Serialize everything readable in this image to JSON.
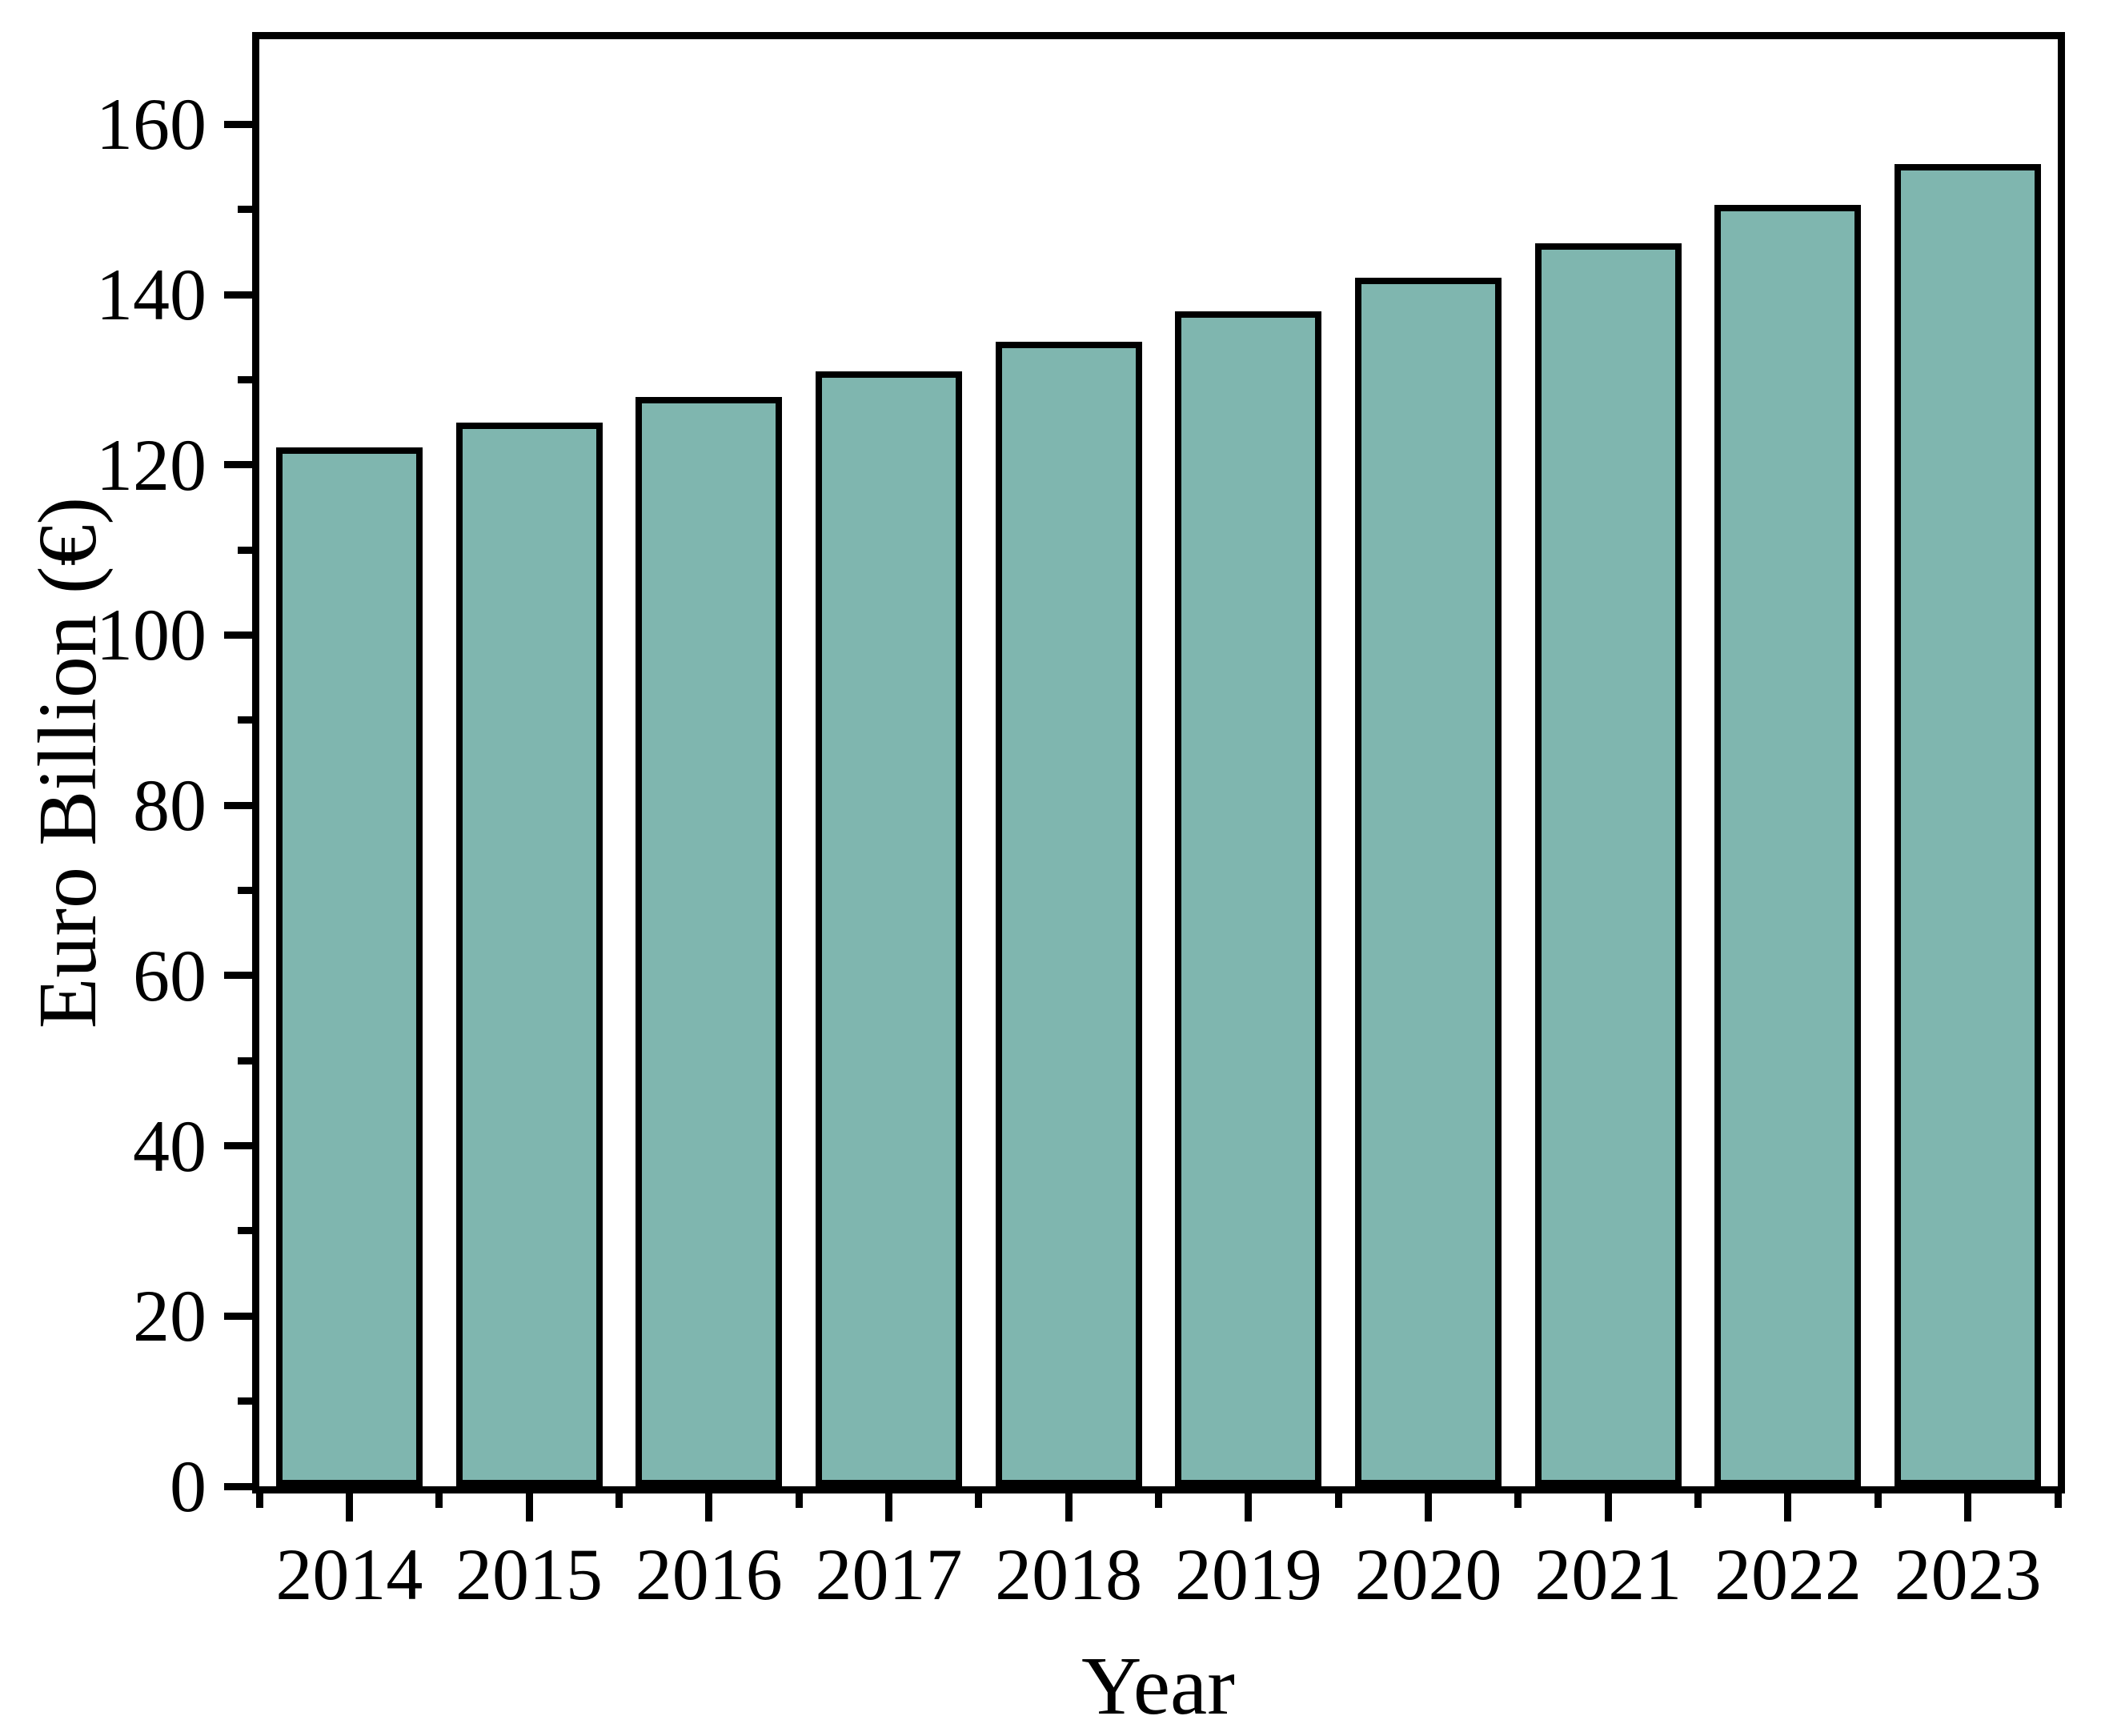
{
  "chart_data": {
    "type": "bar",
    "title": "",
    "xlabel": "Year",
    "ylabel": "Euro Billion (€)",
    "categories": [
      "2014",
      "2015",
      "2016",
      "2017",
      "2018",
      "2019",
      "2020",
      "2021",
      "2022",
      "2023"
    ],
    "values": [
      122,
      125,
      128,
      131,
      134.5,
      138,
      142,
      146,
      150.5,
      155.3
    ],
    "ylim": [
      0,
      170
    ],
    "ytick_major_interval": 20,
    "ytick_minor_interval": 10,
    "ytick_labels": [
      "0",
      "20",
      "40",
      "60",
      "80",
      "100",
      "120",
      "140",
      "160"
    ],
    "grid": "off",
    "legend": "none",
    "bar_color": "#7FB6AF",
    "bar_border_color": "#000000",
    "axis_color": "#000000"
  }
}
